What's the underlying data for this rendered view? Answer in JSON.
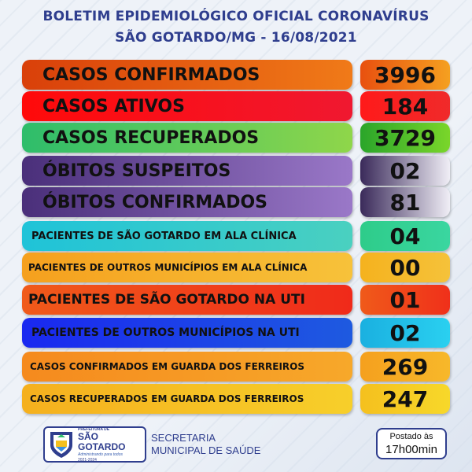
{
  "header": {
    "line1": "BOLETIM EPIDEMIOLÓGICO OFICIAL CORONAVÍRUS",
    "line2": "SÃO GOTARDO/MG - 16/08/2021"
  },
  "rows": [
    {
      "label": "CASOS CONFIRMADOS",
      "value": "3996"
    },
    {
      "label": "CASOS ATIVOS",
      "value": "184"
    },
    {
      "label": "CASOS RECUPERADOS",
      "value": "3729"
    },
    {
      "label": "ÓBITOS SUSPEITOS",
      "value": "02"
    },
    {
      "label": "ÓBITOS CONFIRMADOS",
      "value": "81"
    },
    {
      "label": "PACIENTES DE SÃO GOTARDO EM ALA CLÍNICA",
      "value": "04"
    },
    {
      "label": "PACIENTES DE OUTROS MUNICÍPIOS EM ALA CLÍNICA",
      "value": "00"
    },
    {
      "label": "PACIENTES DE SÃO GOTARDO NA UTI",
      "value": "01"
    },
    {
      "label": "PACIENTES DE OUTROS MUNICÍPIOS NA UTI",
      "value": "02"
    },
    {
      "label": "CASOS CONFIRMADOS EM GUARDA DOS FERREIROS",
      "value": "269"
    },
    {
      "label": "CASOS RECUPERADOS EM GUARDA DOS FERREIROS",
      "value": "247"
    }
  ],
  "colors": {
    "header_text": "#2f3e8e",
    "confirmados": "#e8500f",
    "ativos": "#f00a14",
    "recuperados": "#2ebd6b",
    "obitos": "#6a4a9a",
    "ala_sao_gotardo": "#1fc3d8",
    "ala_outros": "#f5a01e",
    "uti_sao_gotardo": "#f03a1a",
    "uti_outros": "#1a32e8",
    "guarda_confirmados": "#f58a1e",
    "guarda_recuperados": "#f5a81e"
  },
  "footer": {
    "logo_small": "PREFEITURA DE",
    "logo_big": "SÃO GOTARDO",
    "logo_script": "Administrando para todos",
    "logo_years": "2021-2024",
    "secretaria_line1": "SECRETARIA",
    "secretaria_line2": "MUNICIPAL DE SAÚDE",
    "posted_line1": "Postado às",
    "posted_line2": "17h00min"
  }
}
